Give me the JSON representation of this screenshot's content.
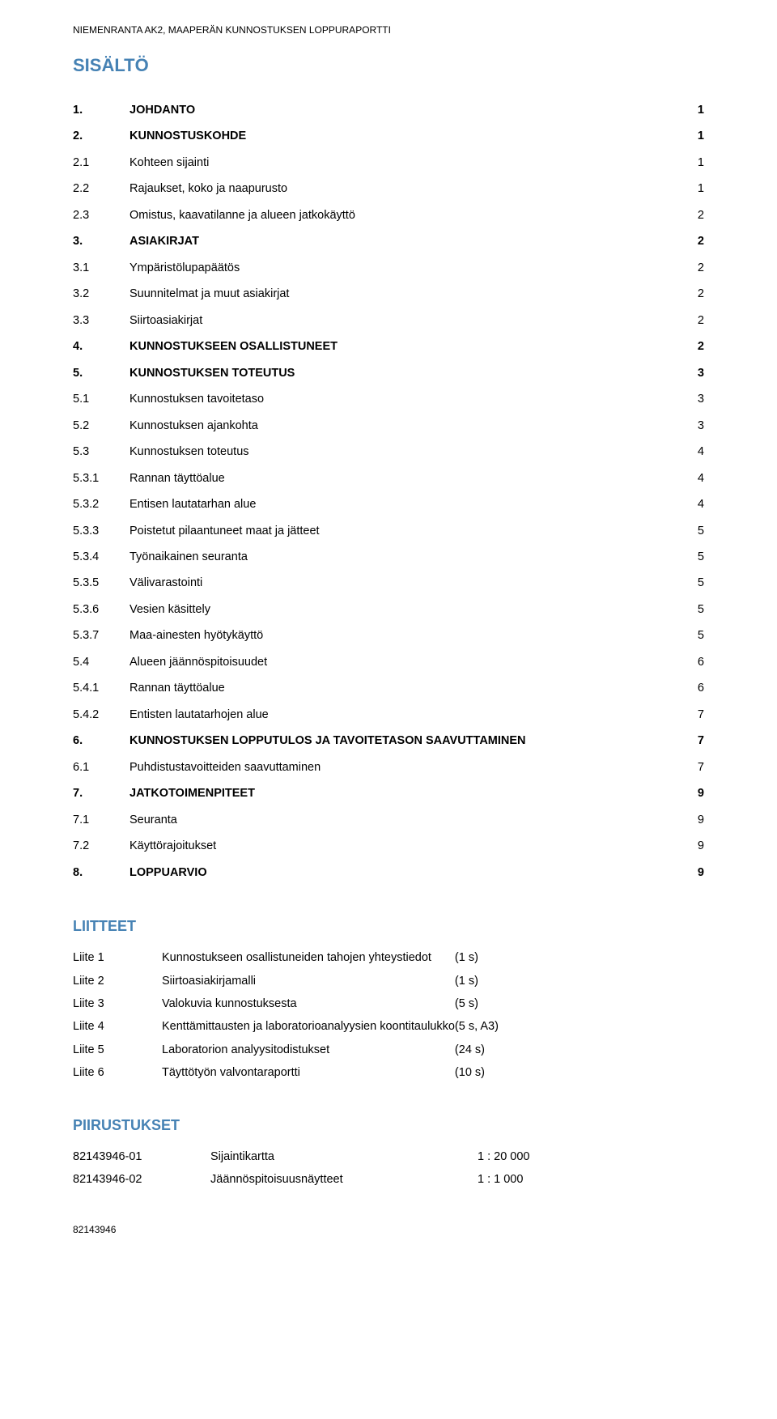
{
  "header": "NIEMENRANTA AK2, MAAPERÄN KUNNOSTUKSEN LOPPURAPORTTI",
  "title": "SISÄLTÖ",
  "toc": [
    {
      "num": "1.",
      "title": "JOHDANTO",
      "page": "1",
      "bold": true
    },
    {
      "num": "2.",
      "title": "KUNNOSTUSKOHDE",
      "page": "1",
      "bold": true
    },
    {
      "num": "2.1",
      "title": "Kohteen sijainti",
      "page": "1",
      "bold": false
    },
    {
      "num": "2.2",
      "title": "Rajaukset, koko ja naapurusto",
      "page": "1",
      "bold": false
    },
    {
      "num": "2.3",
      "title": "Omistus, kaavatilanne ja alueen jatkokäyttö",
      "page": "2",
      "bold": false
    },
    {
      "num": "3.",
      "title": "ASIAKIRJAT",
      "page": "2",
      "bold": true
    },
    {
      "num": "3.1",
      "title": "Ympäristölupapäätös",
      "page": "2",
      "bold": false
    },
    {
      "num": "3.2",
      "title": "Suunnitelmat ja muut asiakirjat",
      "page": "2",
      "bold": false
    },
    {
      "num": "3.3",
      "title": "Siirtoasiakirjat",
      "page": "2",
      "bold": false
    },
    {
      "num": "4.",
      "title": "KUNNOSTUKSEEN OSALLISTUNEET",
      "page": "2",
      "bold": true
    },
    {
      "num": "5.",
      "title": "KUNNOSTUKSEN TOTEUTUS",
      "page": "3",
      "bold": true
    },
    {
      "num": "5.1",
      "title": "Kunnostuksen tavoitetaso",
      "page": "3",
      "bold": false
    },
    {
      "num": "5.2",
      "title": "Kunnostuksen ajankohta",
      "page": "3",
      "bold": false
    },
    {
      "num": "5.3",
      "title": "Kunnostuksen toteutus",
      "page": "4",
      "bold": false
    },
    {
      "num": "5.3.1",
      "title": "Rannan täyttöalue",
      "page": "4",
      "bold": false
    },
    {
      "num": "5.3.2",
      "title": "Entisen lautatarhan alue",
      "page": "4",
      "bold": false
    },
    {
      "num": "5.3.3",
      "title": "Poistetut pilaantuneet maat ja jätteet",
      "page": "5",
      "bold": false
    },
    {
      "num": "5.3.4",
      "title": "Työnaikainen seuranta",
      "page": "5",
      "bold": false
    },
    {
      "num": "5.3.5",
      "title": "Välivarastointi",
      "page": "5",
      "bold": false
    },
    {
      "num": "5.3.6",
      "title": "Vesien käsittely",
      "page": "5",
      "bold": false
    },
    {
      "num": "5.3.7",
      "title": "Maa-ainesten hyötykäyttö",
      "page": "5",
      "bold": false
    },
    {
      "num": "5.4",
      "title": "Alueen jäännöspitoisuudet",
      "page": "6",
      "bold": false
    },
    {
      "num": "5.4.1",
      "title": "Rannan täyttöalue",
      "page": "6",
      "bold": false
    },
    {
      "num": "5.4.2",
      "title": "Entisten lautatarhojen alue",
      "page": "7",
      "bold": false
    },
    {
      "num": "6.",
      "title": "KUNNOSTUKSEN LOPPUTULOS JA TAVOITETASON SAAVUTTAMINEN",
      "page": "7",
      "bold": true
    },
    {
      "num": "6.1",
      "title": "Puhdistustavoitteiden saavuttaminen",
      "page": "7",
      "bold": false
    },
    {
      "num": "7.",
      "title": "JATKOTOIMENPITEET",
      "page": "9",
      "bold": true
    },
    {
      "num": "7.1",
      "title": "Seuranta",
      "page": "9",
      "bold": false
    },
    {
      "num": "7.2",
      "title": "Käyttörajoitukset",
      "page": "9",
      "bold": false
    },
    {
      "num": "8.",
      "title": "LOPPUARVIO",
      "page": "9",
      "bold": true
    }
  ],
  "liitteet_title": "LIITTEET",
  "liitteet": [
    {
      "id": "Liite 1",
      "desc": "Kunnostukseen osallistuneiden tahojen yhteystiedot",
      "pages": "(1 s)"
    },
    {
      "id": "Liite 2",
      "desc": "Siirtoasiakirjamalli",
      "pages": "(1 s)"
    },
    {
      "id": "Liite 3",
      "desc": "Valokuvia kunnostuksesta",
      "pages": "(5 s)"
    },
    {
      "id": "Liite 4",
      "desc": "Kenttämittausten ja laboratorioanalyysien koontitaulukko",
      "pages": "(5 s, A3)"
    },
    {
      "id": "Liite 5",
      "desc": "Laboratorion analyysitodistukset",
      "pages": "(24 s)"
    },
    {
      "id": "Liite 6",
      "desc": "Täyttötyön valvontaraportti",
      "pages": "(10 s)"
    }
  ],
  "piirustukset_title": "PIIRUSTUKSET",
  "piirustukset": [
    {
      "id": "82143946-01",
      "desc": "Sijaintikartta",
      "scale": "1 : 20 000"
    },
    {
      "id": "82143946-02",
      "desc": "Jäännöspitoisuusnäytteet",
      "scale": "1 : 1 000"
    }
  ],
  "footer": "82143946",
  "colors": {
    "heading": "#4682b4",
    "text": "#000000",
    "background": "#ffffff"
  }
}
